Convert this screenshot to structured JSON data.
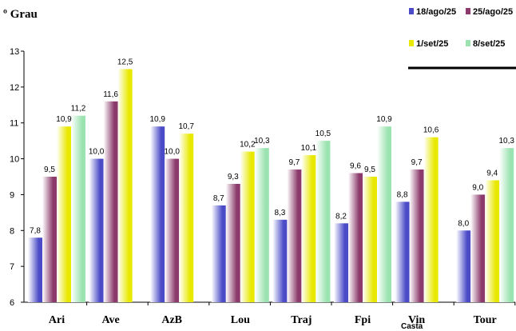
{
  "chart_data": {
    "type": "bar",
    "ylabel": "º Grau",
    "xlabel": "Casta",
    "ylim": [
      6,
      13
    ],
    "yticks": [
      "6",
      "7",
      "8",
      "9",
      "10",
      "11",
      "12",
      "13"
    ],
    "categories": [
      "Ari",
      "Ave",
      "AzB",
      "Lou",
      "Traj",
      "Fpi",
      "Vin",
      "Tour"
    ],
    "series": [
      {
        "name": "18/ago/25",
        "color": "#4b4bc8",
        "values": [
          7.8,
          10.0,
          10.9,
          8.7,
          8.3,
          8.2,
          8.8,
          8.0
        ],
        "labels": [
          "7,8",
          "10,0",
          "10,9",
          "8,7",
          "8,3",
          "8,2",
          "8,8",
          "8,0"
        ]
      },
      {
        "name": "25/ago/25",
        "color": "#8b3a6b",
        "values": [
          9.5,
          11.6,
          10.0,
          9.3,
          9.7,
          9.6,
          9.7,
          9.0
        ],
        "labels": [
          "9,5",
          "11,6",
          "10,0",
          "9,3",
          "9,7",
          "9,6",
          "9,7",
          "9,0"
        ]
      },
      {
        "name": "1/set/25",
        "color": "#e8e800",
        "values": [
          10.9,
          12.5,
          10.7,
          10.2,
          10.1,
          9.5,
          10.6,
          9.4
        ],
        "labels": [
          "10,9",
          "12,5",
          "10,7",
          "10,2",
          "10,1",
          "9,5",
          "10,6",
          "9,4"
        ]
      },
      {
        "name": "8/set/25",
        "color": "#9be3b0",
        "values": [
          11.2,
          null,
          null,
          10.3,
          10.5,
          10.9,
          null,
          10.3
        ],
        "labels": [
          "11,2",
          "",
          "",
          "10,3",
          "10,5",
          "10,9",
          "",
          "10,3"
        ]
      }
    ],
    "legend_position": "top-right",
    "grid": false
  }
}
